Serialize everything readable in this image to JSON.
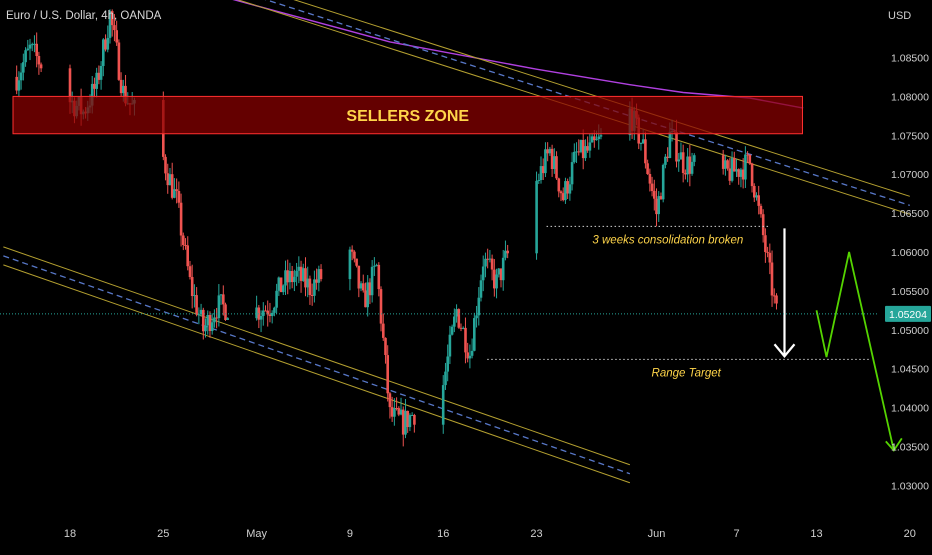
{
  "header": {
    "symbol_title": "Euro / U.S. Dollar, 4h, OANDA",
    "currency": "USD"
  },
  "colors": {
    "background": "#000000",
    "bull": "#26a69a",
    "bear": "#ef5350",
    "zone_fill": "#8b0000",
    "zone_border": "#ff3030",
    "zone_text": "#ffd54a",
    "annotation_text": "#ffd54a",
    "channel_line": "#b4a030",
    "channel_dash": "#5878c8",
    "ma_line": "#b040e0",
    "arrow_white": "#ffffff",
    "arrow_green": "#55d400",
    "price_badge": "#26a69a",
    "axis_text": "#d0d0d0"
  },
  "chart_data": {
    "type": "candlestick",
    "title": "Euro / U.S. Dollar, 4h, OANDA",
    "ylabel": "USD",
    "ylim": [
      1.0255,
      1.0925
    ],
    "yticks": [
      1.085,
      1.08,
      1.075,
      1.07,
      1.065,
      1.06,
      1.055,
      1.05,
      1.045,
      1.04,
      1.035,
      1.03
    ],
    "ytick_labels": [
      "1.08500",
      "1.08000",
      "1.07500",
      "1.07000",
      "1.06500",
      "1.06000",
      "1.05500",
      "1.05000",
      "1.04500",
      "1.04000",
      "1.03500",
      "1.03000"
    ],
    "xticks": [
      {
        "label": "18",
        "date": "2022-04-18"
      },
      {
        "label": "25",
        "date": "2022-04-25"
      },
      {
        "label": "May",
        "date": "2022-05-02"
      },
      {
        "label": "9",
        "date": "2022-05-09"
      },
      {
        "label": "16",
        "date": "2022-05-16"
      },
      {
        "label": "23",
        "date": "2022-05-23"
      },
      {
        "label": "Jun",
        "date": "2022-06-01"
      },
      {
        "label": "7",
        "date": "2022-06-07"
      },
      {
        "label": "13",
        "date": "2022-06-13"
      },
      {
        "label": "20",
        "date": "2022-06-20"
      }
    ],
    "last_price": 1.05204,
    "last_price_label": "1.05204",
    "price_path": [
      [
        "2022-04-14",
        1.0825
      ],
      [
        "2022-04-15",
        1.086
      ],
      [
        "2022-04-18",
        1.0795
      ],
      [
        "2022-04-19",
        1.078
      ],
      [
        "2022-04-20",
        1.0815
      ],
      [
        "2022-04-21",
        1.0905
      ],
      [
        "2022-04-22",
        1.0805
      ],
      [
        "2022-04-25",
        1.072
      ],
      [
        "2022-04-26",
        1.0665
      ],
      [
        "2022-04-27",
        1.056
      ],
      [
        "2022-04-28",
        1.05
      ],
      [
        "2022-04-29",
        1.053
      ],
      [
        "2022-05-02",
        1.0525
      ],
      [
        "2022-05-03",
        1.053
      ],
      [
        "2022-05-04",
        1.056
      ],
      [
        "2022-05-05",
        1.057
      ],
      [
        "2022-05-06",
        1.0555
      ],
      [
        "2022-05-09",
        1.06
      ],
      [
        "2022-05-10",
        1.0535
      ],
      [
        "2022-05-11",
        1.058
      ],
      [
        "2022-05-12",
        1.039
      ],
      [
        "2022-05-13",
        1.038
      ],
      [
        "2022-05-16",
        1.043
      ],
      [
        "2022-05-17",
        1.0525
      ],
      [
        "2022-05-18",
        1.047
      ],
      [
        "2022-05-19",
        1.059
      ],
      [
        "2022-05-20",
        1.056
      ],
      [
        "2022-05-23",
        1.069
      ],
      [
        "2022-05-24",
        1.073
      ],
      [
        "2022-05-25",
        1.067
      ],
      [
        "2022-05-26",
        1.0725
      ],
      [
        "2022-05-27",
        1.073
      ],
      [
        "2022-05-30",
        1.078
      ],
      [
        "2022-05-31",
        1.0735
      ],
      [
        "2022-06-01",
        1.065
      ],
      [
        "2022-06-02",
        1.075
      ],
      [
        "2022-06-03",
        1.0715
      ],
      [
        "2022-06-06",
        1.07
      ],
      [
        "2022-06-07",
        1.0705
      ],
      [
        "2022-06-08",
        1.0715
      ],
      [
        "2022-06-09",
        1.062
      ],
      [
        "2022-06-10",
        1.052
      ]
    ],
    "seed": 7,
    "sellers_zone": {
      "label": "SELLERS ZONE",
      "from": "2022-04-13",
      "to": "2022-06-10",
      "price_low": 1.0752,
      "price_high": 1.08
    },
    "consolidation": {
      "label": "3 weeks consolidation broken",
      "level": 1.0633,
      "from": "2022-05-23",
      "to": "2022-06-09"
    },
    "range_target": {
      "label": "Range Target",
      "level": 1.0462,
      "from": "2022-05-19",
      "to": "2022-06-15"
    },
    "down_channel": {
      "upper": [
        [
          "2022-04-28",
          1.095
        ],
        [
          "2022-06-20",
          1.066
        ]
      ],
      "lower": [
        [
          "2022-04-13",
          1.0595
        ],
        [
          "2022-05-30",
          1.0315
        ]
      ]
    },
    "moving_average": [
      [
        "2022-04-28",
        1.0935
      ],
      [
        "2022-05-12",
        1.087
      ],
      [
        "2022-05-23",
        1.0835
      ],
      [
        "2022-05-30",
        1.0815
      ],
      [
        "2022-06-03",
        1.0805
      ],
      [
        "2022-06-08",
        1.0798
      ],
      [
        "2022-06-12",
        1.0785
      ]
    ],
    "projection": [
      [
        "2022-06-13",
        1.0525
      ],
      [
        "2022-06-13",
        1.0465
      ],
      [
        "2022-06-15",
        1.06
      ],
      [
        "2022-06-17",
        1.0345
      ]
    ],
    "breakout_arrow": {
      "date": "2022-06-10",
      "from": 1.0633,
      "to": 1.0466
    }
  }
}
